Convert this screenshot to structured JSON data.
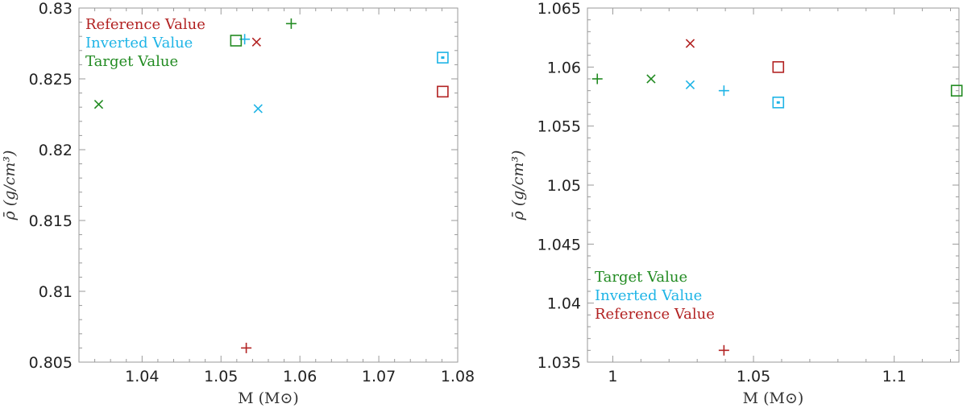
{
  "colors": {
    "reference": "#b22222",
    "inverted": "#1eb4e6",
    "target": "#228b22"
  },
  "chart_data": [
    {
      "type": "scatter",
      "xlabel": "M (M⊙)",
      "ylabel": "ρ̄ (g/cm³)",
      "xlim": [
        1.032,
        1.08
      ],
      "ylim": [
        0.805,
        0.83
      ],
      "xticks": [
        1.04,
        1.05,
        1.06,
        1.07,
        1.08
      ],
      "xtick_labels": [
        "1.04",
        "1.05",
        "1.06",
        "1.07",
        "1.08"
      ],
      "yticks": [
        0.805,
        0.81,
        0.815,
        0.82,
        0.825,
        0.83
      ],
      "ytick_labels": [
        "0.805",
        "0.81",
        "0.815",
        "0.82",
        "0.825",
        "0.83"
      ],
      "legend_position": "top-left",
      "legend": [
        "Reference Value",
        "Inverted Value",
        "Target Value"
      ],
      "legend_series": [
        "reference",
        "inverted",
        "target"
      ],
      "series": [
        {
          "name": "Reference Value",
          "key": "reference",
          "points": [
            {
              "x": 1.0532,
              "y": 0.806,
              "marker": "plus"
            },
            {
              "x": 1.0545,
              "y": 0.8276,
              "marker": "x"
            },
            {
              "x": 1.0781,
              "y": 0.8241,
              "marker": "square"
            }
          ]
        },
        {
          "name": "Inverted Value",
          "key": "inverted",
          "points": [
            {
              "x": 1.053,
              "y": 0.8278,
              "marker": "plus"
            },
            {
              "x": 1.0547,
              "y": 0.8229,
              "marker": "x"
            },
            {
              "x": 1.0781,
              "y": 0.8265,
              "marker": "square-dot"
            }
          ]
        },
        {
          "name": "Target Value",
          "key": "target",
          "points": [
            {
              "x": 1.0589,
              "y": 0.8289,
              "marker": "plus"
            },
            {
              "x": 1.0345,
              "y": 0.8232,
              "marker": "x"
            },
            {
              "x": 1.0519,
              "y": 0.8277,
              "marker": "square"
            }
          ]
        }
      ]
    },
    {
      "type": "scatter",
      "xlabel": "M (M⊙)",
      "ylabel": "ρ̄ (g/cm³)",
      "xlim": [
        0.991,
        1.123
      ],
      "ylim": [
        1.035,
        1.065
      ],
      "xticks": [
        1.0,
        1.05,
        1.1
      ],
      "xtick_labels": [
        "1",
        "1.05",
        "1.1"
      ],
      "yticks": [
        1.035,
        1.04,
        1.045,
        1.05,
        1.055,
        1.06,
        1.065
      ],
      "ytick_labels": [
        "1.035",
        "1.04",
        "1.045",
        "1.05",
        "1.055",
        "1.06",
        "1.065"
      ],
      "legend_position": "bottom-left",
      "legend": [
        "Target Value",
        "Inverted Value",
        "Reference Value"
      ],
      "legend_series": [
        "target",
        "inverted",
        "reference"
      ],
      "series": [
        {
          "name": "Reference Value",
          "key": "reference",
          "points": [
            {
              "x": 1.0395,
              "y": 1.036,
              "marker": "plus"
            },
            {
              "x": 1.0275,
              "y": 1.062,
              "marker": "x"
            },
            {
              "x": 1.0588,
              "y": 1.06,
              "marker": "square"
            }
          ]
        },
        {
          "name": "Inverted Value",
          "key": "inverted",
          "points": [
            {
              "x": 1.0395,
              "y": 1.058,
              "marker": "plus"
            },
            {
              "x": 1.0275,
              "y": 1.0585,
              "marker": "x"
            },
            {
              "x": 1.0588,
              "y": 1.057,
              "marker": "square-dot"
            }
          ]
        },
        {
          "name": "Target Value",
          "key": "target",
          "points": [
            {
              "x": 0.9945,
              "y": 1.059,
              "marker": "plus"
            },
            {
              "x": 1.0136,
              "y": 1.059,
              "marker": "x"
            },
            {
              "x": 1.1222,
              "y": 1.058,
              "marker": "square"
            }
          ]
        }
      ]
    }
  ]
}
